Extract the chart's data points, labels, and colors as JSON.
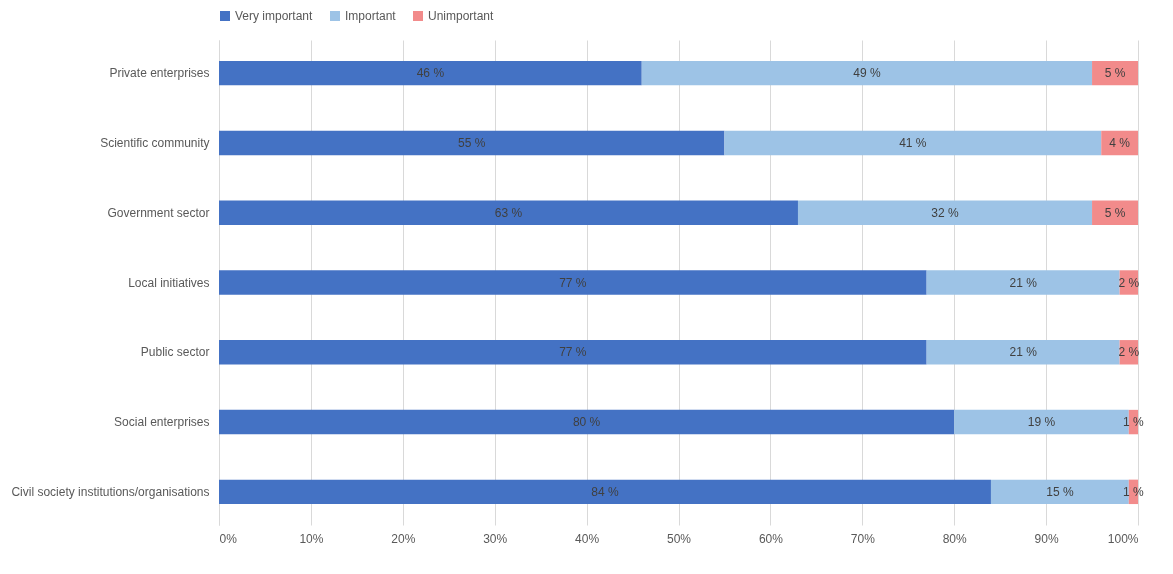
{
  "chart_data": {
    "type": "bar",
    "orientation": "horizontal",
    "stacked": true,
    "categories": [
      "Private enterprises",
      "Scientific community",
      "Government sector",
      "Local initiatives",
      "Public sector",
      "Social enterprises",
      "Civil society institutions/organisations"
    ],
    "series": [
      {
        "name": "Very important",
        "color": "#4472c4",
        "values": [
          46,
          55,
          63,
          77,
          77,
          80,
          84
        ],
        "value_labels": [
          "46 %",
          "55 %",
          "63 %",
          "77 %",
          "77 %",
          "80 %",
          "84 %"
        ]
      },
      {
        "name": "Important",
        "color": "#9dc3e6",
        "values": [
          49,
          41,
          32,
          21,
          21,
          19,
          15
        ],
        "value_labels": [
          "49 %",
          "41 %",
          "32 %",
          "21 %",
          "21 %",
          "19 %",
          "15 %"
        ]
      },
      {
        "name": "Unimportant",
        "color": "#f28b8b",
        "values": [
          5,
          4,
          5,
          2,
          2,
          1,
          1
        ],
        "value_labels": [
          "5 %",
          "4 %",
          "5 %",
          "2 %",
          "2 %",
          "1 %",
          "1 %"
        ]
      }
    ],
    "xlim": [
      0,
      100
    ],
    "xticks": [
      {
        "value": 0,
        "label": "0%"
      },
      {
        "value": 10,
        "label": "10%"
      },
      {
        "value": 20,
        "label": "20%"
      },
      {
        "value": 30,
        "label": "30%"
      },
      {
        "value": 40,
        "label": "40%"
      },
      {
        "value": 50,
        "label": "50%"
      },
      {
        "value": 60,
        "label": "60%"
      },
      {
        "value": 70,
        "label": "70%"
      },
      {
        "value": 80,
        "label": "80%"
      },
      {
        "value": 90,
        "label": "90%"
      },
      {
        "value": 100,
        "label": "100%"
      }
    ],
    "grid": "x",
    "legend": "top"
  }
}
